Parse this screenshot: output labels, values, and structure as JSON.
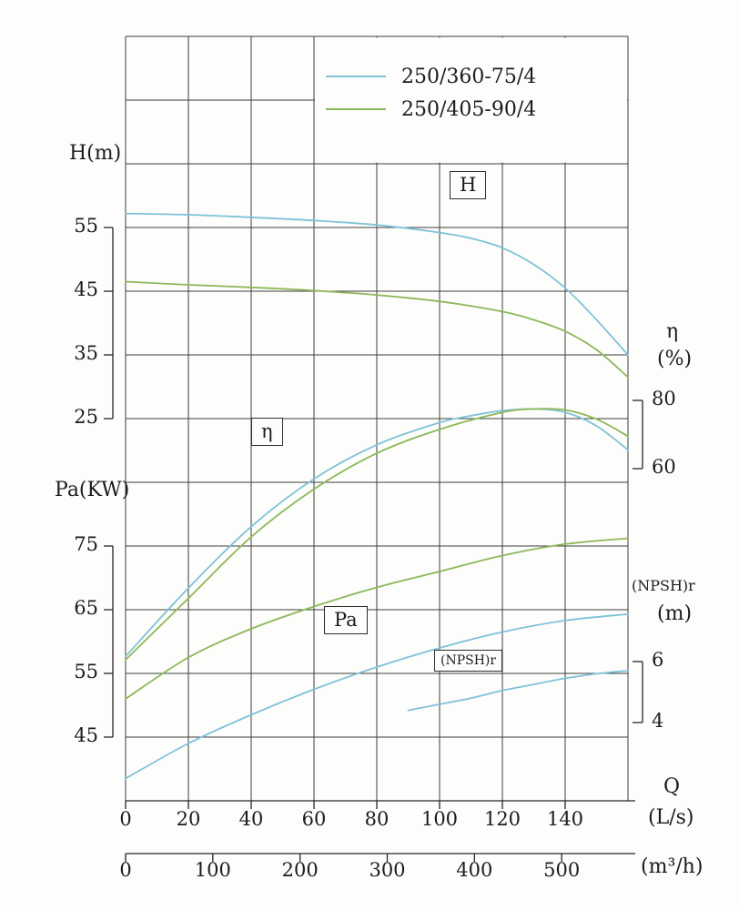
{
  "chart_data": {
    "type": "line",
    "legend": [
      {
        "label": "250/360-75/4",
        "color": "#7fc2d9"
      },
      {
        "label": "250/405-90/4",
        "color": "#8cb858"
      }
    ],
    "x_axis": {
      "quantity_symbol": "Q",
      "primary_unit": "(L/s)",
      "primary_ticks": [
        0,
        20,
        40,
        60,
        80,
        100,
        120,
        140
      ],
      "range_ls": [
        0,
        160
      ],
      "secondary_unit": "(m³/h)",
      "secondary_ticks": [
        0,
        100,
        200,
        300,
        400,
        500
      ]
    },
    "y_axes": {
      "head": {
        "title": "H(m)",
        "ticks": [
          55,
          45,
          35,
          25
        ]
      },
      "power": {
        "title": "Pa(KW)",
        "ticks": [
          75,
          65,
          55,
          45
        ]
      },
      "efficiency": {
        "title": "η",
        "unit": "(%)",
        "ticks": [
          80,
          60
        ]
      },
      "npsh": {
        "title": "(NPSH)r",
        "unit": "(m)",
        "ticks": [
          6,
          4
        ]
      }
    },
    "curve_labels": {
      "head": "H",
      "efficiency": "η",
      "power": "Pa",
      "npsh": "(NPSH)r"
    },
    "series": [
      {
        "name": "250/360-75/4 H",
        "axis": "head",
        "color": "#7fc2d9",
        "points": [
          [
            0,
            57.2
          ],
          [
            20,
            57.0
          ],
          [
            40,
            56.6
          ],
          [
            60,
            56.1
          ],
          [
            80,
            55.4
          ],
          [
            100,
            54.2
          ],
          [
            110,
            53.3
          ],
          [
            120,
            51.8
          ],
          [
            130,
            49.2
          ],
          [
            140,
            45.5
          ],
          [
            150,
            40.5
          ],
          [
            160,
            35.0
          ]
        ]
      },
      {
        "name": "250/405-90/4 H",
        "axis": "head",
        "color": "#8cb858",
        "points": [
          [
            0,
            46.5
          ],
          [
            20,
            46.0
          ],
          [
            40,
            45.6
          ],
          [
            60,
            45.1
          ],
          [
            80,
            44.4
          ],
          [
            100,
            43.4
          ],
          [
            120,
            41.8
          ],
          [
            130,
            40.5
          ],
          [
            140,
            38.7
          ],
          [
            150,
            35.8
          ],
          [
            160,
            31.5
          ]
        ]
      },
      {
        "name": "250/360-75/4 efficiency",
        "axis": "efficiency",
        "color": "#7fc2d9",
        "points": [
          [
            0,
            5
          ],
          [
            20,
            25
          ],
          [
            40,
            43
          ],
          [
            60,
            57
          ],
          [
            80,
            67
          ],
          [
            100,
            73.5
          ],
          [
            110,
            75.5
          ],
          [
            120,
            77
          ],
          [
            130,
            77.5
          ],
          [
            140,
            76.5
          ],
          [
            150,
            72.5
          ],
          [
            160,
            65.5
          ]
        ]
      },
      {
        "name": "250/405-90/4 efficiency",
        "axis": "efficiency",
        "color": "#8cb858",
        "points": [
          [
            0,
            4
          ],
          [
            20,
            22
          ],
          [
            40,
            40
          ],
          [
            60,
            54
          ],
          [
            80,
            64.5
          ],
          [
            100,
            71.5
          ],
          [
            120,
            76.5
          ],
          [
            130,
            77.5
          ],
          [
            140,
            77.2
          ],
          [
            150,
            74.5
          ],
          [
            160,
            69.5
          ]
        ]
      },
      {
        "name": "250/405-90/4 Pa",
        "axis": "power",
        "color": "#8cb858",
        "points": [
          [
            0,
            51
          ],
          [
            20,
            57.5
          ],
          [
            40,
            62
          ],
          [
            60,
            65.5
          ],
          [
            80,
            68.5
          ],
          [
            100,
            71
          ],
          [
            120,
            73.5
          ],
          [
            140,
            75.3
          ],
          [
            160,
            76.2
          ]
        ]
      },
      {
        "name": "250/360-75/4 Pa",
        "axis": "power",
        "color": "#7fc2d9",
        "points": [
          [
            0,
            38.5
          ],
          [
            20,
            44
          ],
          [
            40,
            48.5
          ],
          [
            60,
            52.5
          ],
          [
            80,
            56
          ],
          [
            100,
            59
          ],
          [
            120,
            61.5
          ],
          [
            140,
            63.3
          ],
          [
            160,
            64.3
          ]
        ]
      },
      {
        "name": "250/360-75/4 NPSHr",
        "axis": "npsh",
        "color": "#7fc2d9",
        "points": [
          [
            90,
            4.4
          ],
          [
            100,
            4.6
          ],
          [
            110,
            4.8
          ],
          [
            120,
            5.05
          ],
          [
            130,
            5.25
          ],
          [
            140,
            5.45
          ],
          [
            150,
            5.6
          ],
          [
            160,
            5.7
          ]
        ]
      }
    ]
  }
}
